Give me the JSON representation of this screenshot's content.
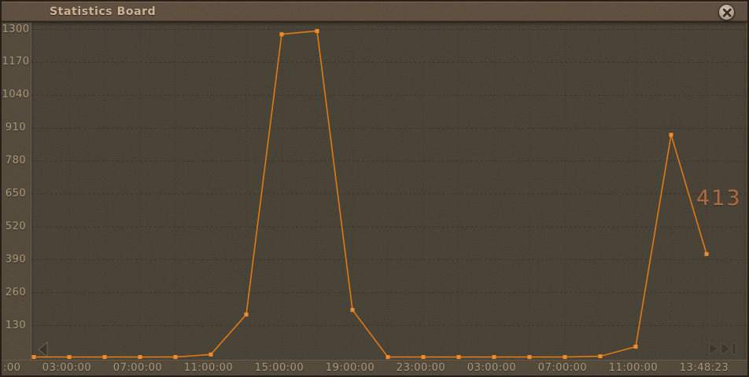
{
  "window": {
    "title": "Statistics Board"
  },
  "chart_data": {
    "type": "line",
    "title": "Statistics Board",
    "x_ticks": [
      ":00",
      "03:00:00",
      "07:00:00",
      "11:00:00",
      "15:00:00",
      "19:00:00",
      "23:00:00",
      "03:00:00",
      "07:00:00",
      "11:00:00",
      "13:48:23"
    ],
    "y_ticks": [
      1300,
      1170,
      1040,
      910,
      780,
      650,
      520,
      390,
      260,
      130
    ],
    "ylim": [
      0,
      1300
    ],
    "x_note": "labels every 4h, data points every 2h, last point at current time 13:48:23",
    "values": [
      6,
      6,
      6,
      6,
      6,
      16,
      174,
      1281,
      1294,
      192,
      6,
      6,
      6,
      6,
      6,
      6,
      9,
      47,
      884,
      413
    ],
    "current_value_label": "413",
    "grid": "faint dashed",
    "legend": "none",
    "colors": {
      "line": "#dc7013",
      "marker": "#ef8227",
      "callout_text": "#a8623a",
      "tick_text": "#a29072",
      "title_text": "#c9ab8b",
      "plot_bg": "#433d33",
      "frame_bg": "#4e4538"
    }
  },
  "icons": {
    "close": "close window",
    "scroll_left": "scroll chart left",
    "skip_end": "skip to latest"
  }
}
